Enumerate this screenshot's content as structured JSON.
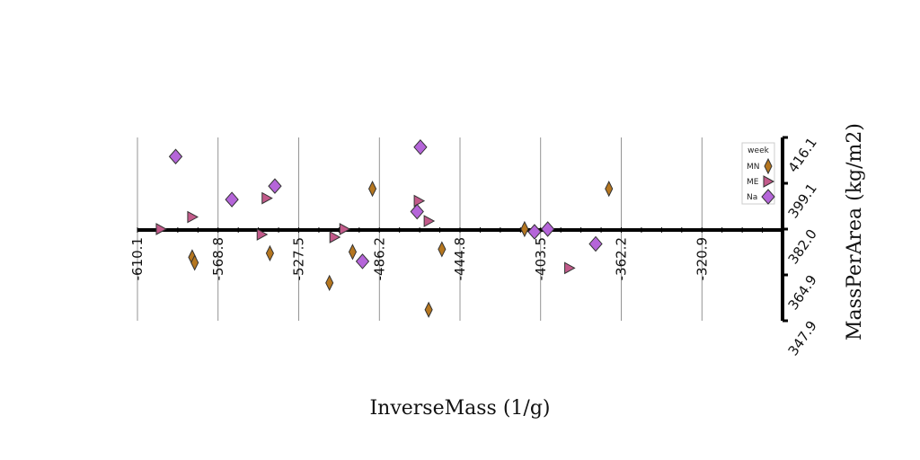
{
  "chart_data": {
    "type": "scatter",
    "title": "",
    "xlabel": "InverseMass (1/g)",
    "ylabel": "MassPerArea (kg/m2)",
    "xlim": [
      -610.1,
      -220.0
    ],
    "ylim": [
      347.9,
      416.1
    ],
    "x_ticks": [
      "-610.1",
      "-568.8",
      "-527.5",
      "-486.2",
      "-444.8",
      "-403.5",
      "-362.2",
      "-320.9"
    ],
    "y_ticks": [
      "347.9",
      "364.9",
      "382.0",
      "399.1",
      "416.1"
    ],
    "grid": true,
    "legend": {
      "title": "week",
      "position": "top-right"
    },
    "series": [
      {
        "name": "MN",
        "marker": "thin-diamond",
        "color": "#b5761f",
        "points": [
          [
            -577.0,
            371.5
          ],
          [
            -575.5,
            369.5
          ],
          [
            -530.0,
            373.0
          ],
          [
            -494.0,
            362.0
          ],
          [
            -480.0,
            373.5
          ],
          [
            -468.0,
            397.0
          ],
          [
            -434.0,
            352.0
          ],
          [
            -426.0,
            374.5
          ],
          [
            -376.0,
            382.0
          ],
          [
            -325.0,
            397.0
          ]
        ]
      },
      {
        "name": "ME",
        "marker": "triangle-right",
        "color": "#c25a8a",
        "points": [
          [
            -596.0,
            382.0
          ],
          [
            -577.0,
            386.5
          ],
          [
            -535.0,
            380.0
          ],
          [
            -532.0,
            393.5
          ],
          [
            -491.0,
            379.0
          ],
          [
            -485.0,
            382.0
          ],
          [
            -440.0,
            392.5
          ],
          [
            -434.0,
            385.0
          ],
          [
            -349.0,
            367.5
          ]
        ]
      },
      {
        "name": "Na",
        "marker": "diamond",
        "color": "#b565d9",
        "points": [
          [
            -587.0,
            409.0
          ],
          [
            -553.0,
            393.0
          ],
          [
            -527.0,
            398.0
          ],
          [
            -474.0,
            370.0
          ],
          [
            -441.0,
            388.5
          ],
          [
            -439.0,
            412.5
          ],
          [
            -370.0,
            381.0
          ],
          [
            -362.0,
            382.0
          ],
          [
            -333.0,
            376.5
          ]
        ]
      }
    ]
  }
}
